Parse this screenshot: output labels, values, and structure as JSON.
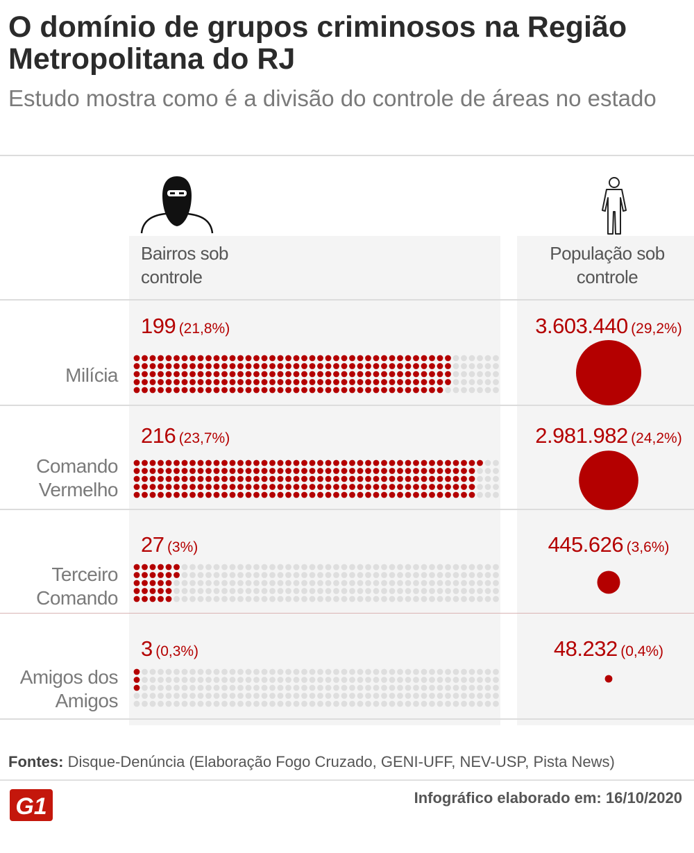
{
  "title": "O domínio de grupos criminosos na Região Metropolitana do RJ",
  "subtitle": "Estudo mostra como é a divisão do controle de áreas no estado",
  "icons": {
    "left": "masked-criminal-icon",
    "right": "person-icon"
  },
  "colors": {
    "accent": "#b40000",
    "empty_dot": "#dedede",
    "panel": "#f4f4f4"
  },
  "chart_data": {
    "type": "table",
    "columns": [
      "Bairros sob controle",
      "População sob controle"
    ],
    "rows": [
      {
        "group": "Milícia",
        "bairros": 199,
        "bairros_pct": "(21,8%)",
        "bairros_label": "199",
        "populacao": 3603440,
        "populacao_label": "3.603.440",
        "populacao_pct": "(29,2%)"
      },
      {
        "group": "Comando Vermelho",
        "bairros": 216,
        "bairros_pct": "(23,7%)",
        "bairros_label": "216",
        "populacao": 2981982,
        "populacao_label": "2.981.982",
        "populacao_pct": "(24,2%)"
      },
      {
        "group": "Terceiro Comando",
        "bairros": 27,
        "bairros_pct": "(3%)",
        "bairros_label": "27",
        "populacao": 445626,
        "populacao_label": "445.626",
        "populacao_pct": "(3,6%)"
      },
      {
        "group": "Amigos dos Amigos",
        "bairros": 3,
        "bairros_pct": "(0,3%)",
        "bairros_label": "3",
        "populacao": 48232,
        "populacao_label": "48.232",
        "populacao_pct": "(0,4%)"
      }
    ]
  },
  "sources_label": "Fontes:",
  "sources_text": "Disque-Denúncia (Elaboração Fogo Cruzado, GENI-UFF, NEV-USP, Pista News)",
  "footer_label": "Infográfico elaborado em:",
  "footer_date": "16/10/2020",
  "logo_text": "G1"
}
